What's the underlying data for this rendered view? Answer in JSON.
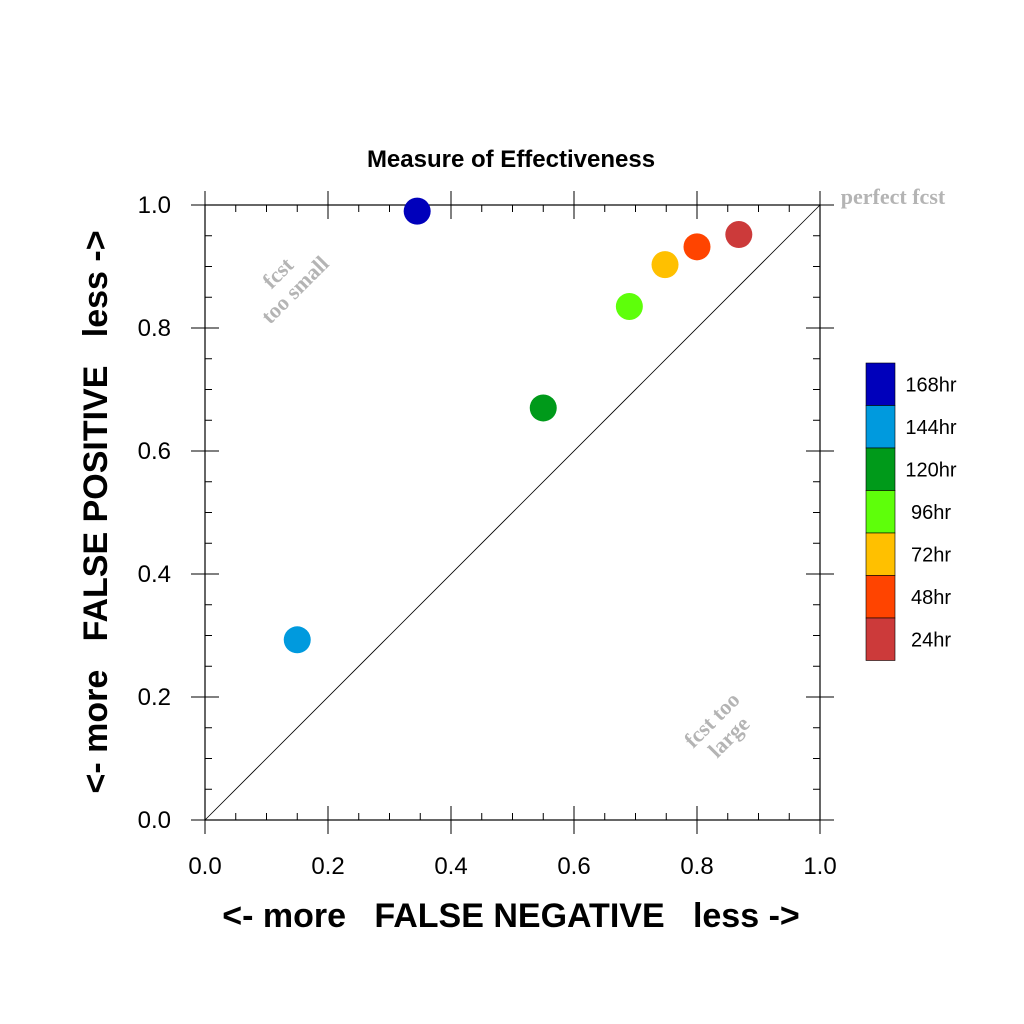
{
  "chart_data": {
    "type": "scatter",
    "title": "Measure of Effectiveness",
    "xlabel": "<- more   FALSE NEGATIVE   less ->",
    "ylabel": "<- more   FALSE POSITIVE   less ->",
    "xlim": [
      0.0,
      1.0
    ],
    "ylim": [
      0.0,
      1.0
    ],
    "xticks": [
      "0.0",
      "0.2",
      "0.4",
      "0.6",
      "0.8",
      "1.0"
    ],
    "yticks": [
      "0.0",
      "0.2",
      "0.4",
      "0.6",
      "0.8",
      "1.0"
    ],
    "grid": false,
    "diagonal_line": true,
    "legend_placement": "right",
    "annotations": {
      "perfect": "perfect fcst",
      "too_small_1": "fcst",
      "too_small_2": "too small",
      "too_large_1": "fcst too",
      "too_large_2": "large"
    },
    "series": [
      {
        "name": "168hr",
        "color": "#0000bb",
        "x": 0.345,
        "y": 0.99
      },
      {
        "name": "144hr",
        "color": "#009ade",
        "x": 0.15,
        "y": 0.293
      },
      {
        "name": "120hr",
        "color": "#009a1a",
        "x": 0.55,
        "y": 0.67
      },
      {
        "name": "96hr",
        "color": "#5eff0a",
        "x": 0.69,
        "y": 0.835
      },
      {
        "name": "72hr",
        "color": "#ffc000",
        "x": 0.748,
        "y": 0.903
      },
      {
        "name": "48hr",
        "color": "#ff4400",
        "x": 0.8,
        "y": 0.932
      },
      {
        "name": "24hr",
        "color": "#cc3a3a",
        "x": 0.868,
        "y": 0.952
      }
    ]
  }
}
